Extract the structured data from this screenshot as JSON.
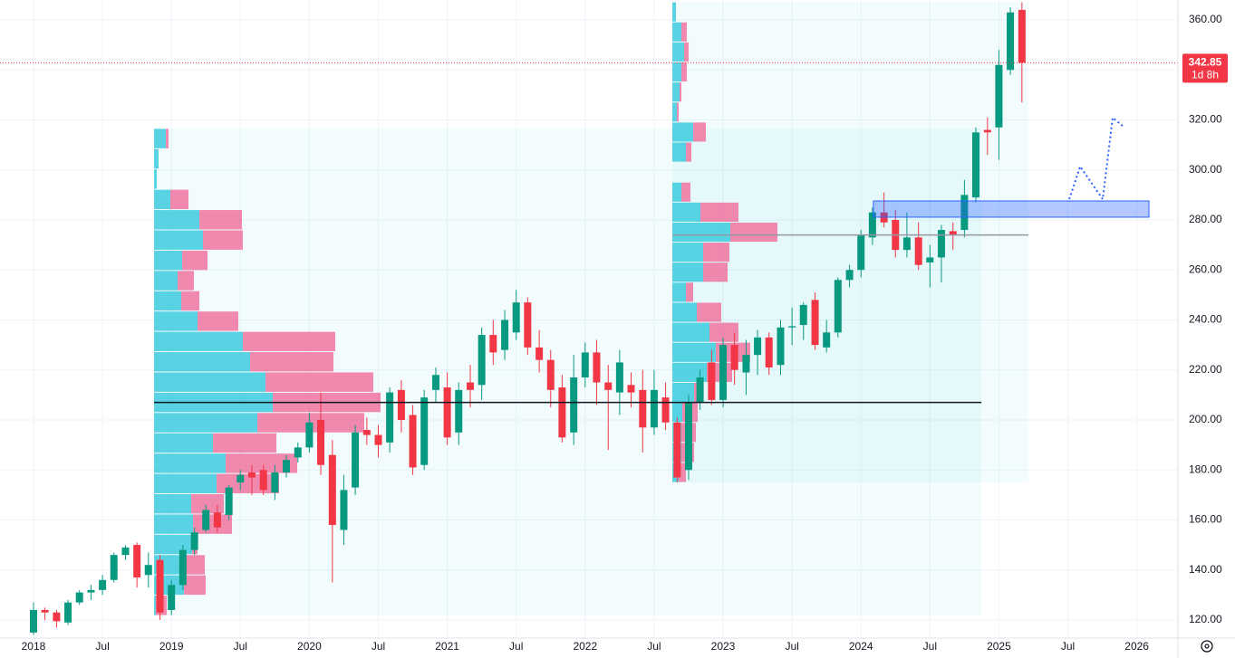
{
  "chart_data": {
    "type": "candlestick",
    "x": [
      2018.0,
      2018.083,
      2018.167,
      2018.25,
      2018.333,
      2018.417,
      2018.5,
      2018.583,
      2018.667,
      2018.75,
      2018.833,
      2018.917,
      2019.0,
      2019.083,
      2019.167,
      2019.25,
      2019.333,
      2019.417,
      2019.5,
      2019.583,
      2019.667,
      2019.75,
      2019.833,
      2019.917,
      2020.0,
      2020.083,
      2020.167,
      2020.25,
      2020.333,
      2020.417,
      2020.5,
      2020.583,
      2020.667,
      2020.75,
      2020.833,
      2020.917,
      2021.0,
      2021.083,
      2021.167,
      2021.25,
      2021.333,
      2021.417,
      2021.5,
      2021.583,
      2021.667,
      2021.75,
      2021.833,
      2021.917,
      2022.0,
      2022.083,
      2022.167,
      2022.25,
      2022.333,
      2022.417,
      2022.5,
      2022.583,
      2022.667,
      2022.75,
      2022.833,
      2022.917,
      2023.0,
      2023.083,
      2023.167,
      2023.25,
      2023.333,
      2023.417,
      2023.5,
      2023.583,
      2023.667,
      2023.75,
      2023.833,
      2023.917,
      2024.0,
      2024.083,
      2024.167,
      2024.25,
      2024.333,
      2024.417,
      2024.5,
      2024.583,
      2024.667,
      2024.75,
      2024.833,
      2024.917,
      2025.0,
      2025.083,
      2025.167
    ],
    "open": [
      115,
      124,
      123,
      119,
      127,
      131,
      132,
      136,
      146,
      150,
      138,
      144,
      124,
      134,
      148,
      156,
      163,
      162,
      175,
      179,
      180,
      171,
      179,
      185,
      189,
      200,
      186,
      156,
      173,
      196,
      194,
      191,
      212,
      202,
      182,
      212,
      213,
      195,
      215,
      214,
      234,
      228,
      235,
      247,
      229,
      224,
      213,
      195,
      217,
      227,
      215,
      211,
      214,
      212,
      197,
      209,
      199,
      180,
      207,
      223,
      208,
      230,
      219,
      226,
      233,
      222,
      237,
      238,
      248,
      229,
      235,
      256,
      260,
      273,
      283,
      280,
      268,
      273,
      263,
      265,
      275.5,
      276,
      289,
      316,
      317,
      340,
      364
    ],
    "high": [
      127,
      125,
      124,
      128,
      132,
      134,
      138,
      147,
      150,
      151,
      147,
      146,
      136,
      150,
      157,
      166,
      166,
      174,
      180,
      182,
      182,
      182,
      186,
      191,
      203,
      211,
      192,
      178,
      198,
      201,
      198,
      213,
      216,
      206,
      212,
      221,
      219,
      215,
      222,
      237,
      240,
      244,
      252,
      249,
      236,
      228,
      218,
      226,
      231,
      232,
      222,
      228,
      219,
      220,
      220,
      215,
      201,
      210,
      220,
      228,
      233,
      235,
      232,
      236,
      235,
      240,
      245,
      247,
      251,
      240,
      257,
      262,
      276,
      285,
      291,
      284,
      283,
      279,
      270,
      278,
      279,
      296,
      317,
      321,
      348,
      365,
      367
    ],
    "low": [
      114,
      120,
      117,
      118,
      126,
      128,
      130,
      135,
      144,
      133,
      133,
      120,
      122,
      132,
      146,
      155,
      155,
      160,
      172,
      170,
      170,
      168,
      177,
      183,
      187,
      178,
      135,
      150,
      170,
      190,
      185,
      187,
      195,
      178,
      180,
      207,
      190,
      190,
      205,
      208,
      222,
      224,
      232,
      226,
      219,
      205,
      191,
      190,
      213,
      206,
      188,
      202,
      205,
      187,
      194,
      196,
      175,
      176,
      204,
      206,
      205,
      214,
      210,
      218,
      218,
      218,
      230,
      232,
      228,
      227,
      233,
      253,
      257,
      270,
      277,
      265,
      265,
      260,
      253,
      255,
      268,
      273,
      287,
      306,
      304,
      338,
      327
    ],
    "close": [
      124,
      123,
      119.5,
      127,
      131,
      132,
      136,
      146,
      149,
      137,
      142,
      123,
      134,
      148,
      155,
      164,
      157,
      173,
      178,
      177,
      172,
      179,
      184,
      189,
      199,
      182,
      158,
      172,
      195,
      194,
      190,
      211,
      200,
      181,
      209,
      218,
      193,
      212,
      212,
      234,
      227,
      240,
      247,
      229,
      224,
      212,
      193,
      217,
      227,
      215,
      212,
      223,
      211,
      197,
      212,
      199,
      177,
      207,
      217,
      208,
      230,
      220,
      226,
      233,
      221,
      237,
      237.5,
      246,
      230,
      235,
      256,
      260,
      274,
      283,
      279,
      268,
      273,
      262,
      265,
      276,
      274,
      290,
      315,
      315,
      342,
      363,
      342.85
    ],
    "up_color": "#089981",
    "down_color": "#f23645",
    "countdown": "1d 8h",
    "xlim": [
      2017.757,
      2026.298
    ],
    "xticks": [
      2018,
      {
        "value": 2018.5,
        "label": "Jul"
      },
      2019,
      {
        "value": 2019.5,
        "label": "Jul"
      },
      2020,
      {
        "value": 2020.5,
        "label": "Jul"
      },
      2021,
      {
        "value": 2021.5,
        "label": "Jul"
      },
      2022,
      {
        "value": 2022.5,
        "label": "Jul"
      },
      2023,
      {
        "value": 2023.5,
        "label": "Jul"
      },
      2024,
      {
        "value": 2024.5,
        "label": "Jul"
      },
      2025,
      {
        "value": 2025.5,
        "label": "Jul"
      },
      2026
    ],
    "ylim": [
      112.76,
      367.96
    ],
    "yticks": [
      {
        "value": 120,
        "label": "120.00"
      },
      {
        "value": 140,
        "label": "140.00"
      },
      {
        "value": 160,
        "label": "160.00"
      },
      {
        "value": 180,
        "label": "180.00"
      },
      {
        "value": 200,
        "label": "200.00"
      },
      {
        "value": 220,
        "label": "220.00"
      },
      {
        "value": 240,
        "label": "240.00"
      },
      {
        "value": 260,
        "label": "260.00"
      },
      {
        "value": 280,
        "label": "280.00"
      },
      {
        "value": 300,
        "label": "300.00"
      },
      {
        "value": 320,
        "label": "320.00"
      },
      {
        "value": 340,
        "label": "340.00"
      },
      {
        "value": 360,
        "label": "360.00"
      }
    ],
    "grid": true,
    "volume_profiles": [
      {
        "time": [
          2018.874,
          2024.873
        ],
        "range": [
          121.8,
          316.6
        ],
        "poc": 207,
        "poc_color": "#131722",
        "up": [
          13,
          5,
          3,
          18,
          50,
          54,
          31,
          26,
          30,
          48,
          98,
          106,
          123,
          131,
          114,
          65,
          79,
          69,
          41,
          43,
          42,
          35,
          33,
          2
        ],
        "down": [
          3,
          0,
          0,
          20,
          47,
          44,
          28,
          18,
          20,
          45,
          102,
          92,
          119,
          119,
          118,
          70,
          79,
          69,
          36,
          43,
          6,
          21,
          24,
          12
        ]
      },
      {
        "time": [
          2022.632,
          2025.214
        ],
        "range": [
          175,
          367.2
        ],
        "poc": 274,
        "poc_color": "#9598a1",
        "up": [
          4,
          10,
          13,
          10,
          8,
          5,
          23,
          15,
          0,
          10,
          31,
          64,
          34,
          34,
          15,
          27,
          41,
          48,
          38,
          24,
          11,
          10,
          10,
          7
        ],
        "down": [
          0,
          6,
          5,
          6,
          2,
          2,
          14,
          6,
          0,
          10,
          42,
          52,
          29,
          27,
          8,
          27,
          32,
          38,
          28,
          9,
          17,
          16,
          14,
          8
        ]
      }
    ],
    "zone": {
      "time": [
        2024.09,
        2026.088
      ],
      "price": [
        281.1,
        287.6
      ]
    },
    "projection": {
      "x": [
        2025.51,
        2025.589,
        2025.753,
        2025.825,
        2025.904
      ],
      "y": [
        288.3,
        301.4,
        288.3,
        320.9,
        317.3
      ]
    }
  }
}
